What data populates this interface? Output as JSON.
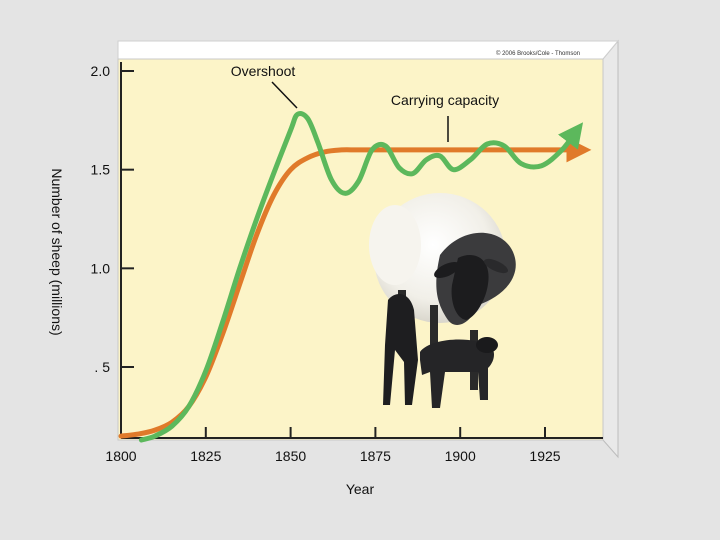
{
  "chart_data": {
    "type": "line",
    "xlabel": "Year",
    "ylabel": "Number of sheep (millions)",
    "x_ticks": [
      "1800",
      "1825",
      "1850",
      "1875",
      "1900",
      "1925"
    ],
    "x_tick_values": [
      1800,
      1825,
      1850,
      1875,
      1900,
      1925
    ],
    "y_ticks": [
      "2.0",
      "1.5",
      "1.0",
      ". 5"
    ],
    "y_tick_values": [
      2.0,
      1.5,
      1.0,
      0.5
    ],
    "xlim": [
      1800,
      1940
    ],
    "ylim": [
      0.15,
      2.0
    ],
    "grid": false,
    "series": [
      {
        "name": "",
        "color": "#e07a2a",
        "x": [
          1800,
          1805,
          1810,
          1815,
          1820,
          1825,
          1830,
          1835,
          1840,
          1845,
          1850,
          1855,
          1860,
          1865,
          1870,
          1880,
          1890,
          1900,
          1910,
          1920,
          1930,
          1935
        ],
        "y": [
          0.15,
          0.16,
          0.18,
          0.22,
          0.3,
          0.45,
          0.67,
          0.92,
          1.17,
          1.37,
          1.5,
          1.56,
          1.59,
          1.6,
          1.6,
          1.6,
          1.6,
          1.6,
          1.6,
          1.6,
          1.6,
          1.6
        ]
      },
      {
        "name": "",
        "color": "#5cb85c",
        "x": [
          1806,
          1810,
          1815,
          1820,
          1825,
          1830,
          1835,
          1840,
          1845,
          1850,
          1852,
          1855,
          1858,
          1862,
          1866,
          1870,
          1874,
          1878,
          1882,
          1886,
          1890,
          1894,
          1898,
          1903,
          1908,
          1913,
          1918,
          1924,
          1930,
          1934
        ],
        "y": [
          0.13,
          0.15,
          0.2,
          0.3,
          0.48,
          0.73,
          1.0,
          1.25,
          1.48,
          1.7,
          1.78,
          1.76,
          1.64,
          1.45,
          1.38,
          1.44,
          1.6,
          1.62,
          1.51,
          1.48,
          1.55,
          1.57,
          1.5,
          1.55,
          1.63,
          1.62,
          1.53,
          1.52,
          1.6,
          1.69
        ]
      }
    ],
    "annotations": {
      "overshoot": "Overshoot",
      "carrying_capacity": "Carrying capacity"
    },
    "copyright": "© 2006 Brooks/Cole - Thomson",
    "colors": {
      "panel": "#fcf4c8",
      "panel_side": "#e8e8e8",
      "page_bg": "#e4e4e4"
    },
    "inset_image": "sheep-with-lambs-photo"
  }
}
